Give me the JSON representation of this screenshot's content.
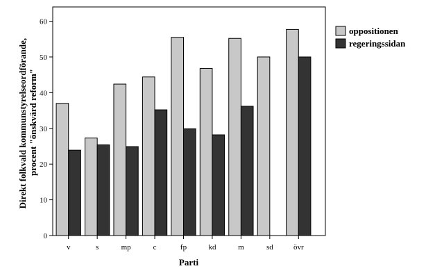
{
  "chart_data": {
    "type": "bar",
    "categories": [
      "v",
      "s",
      "mp",
      "c",
      "fp",
      "kd",
      "m",
      "sd",
      "övr"
    ],
    "series": [
      {
        "name": "oppositionen",
        "color": "#c8c8c8",
        "values": [
          37,
          27.3,
          42.4,
          44.4,
          55.5,
          46.8,
          55.2,
          50,
          57.7
        ]
      },
      {
        "name": "regeringssidan",
        "color": "#333333",
        "values": [
          23.9,
          25.4,
          24.9,
          35.2,
          29.9,
          28.2,
          36.2,
          null,
          50
        ]
      }
    ],
    "xlabel": "Parti",
    "ylabel_lines": [
      "Direkt folkvald kommunstyrelseordförande,",
      "procent \"önskvärd reform\""
    ],
    "ylim": [
      0,
      64
    ],
    "yticks": [
      0,
      10,
      20,
      30,
      40,
      50,
      60
    ],
    "grid": false,
    "legend_position": "right"
  }
}
